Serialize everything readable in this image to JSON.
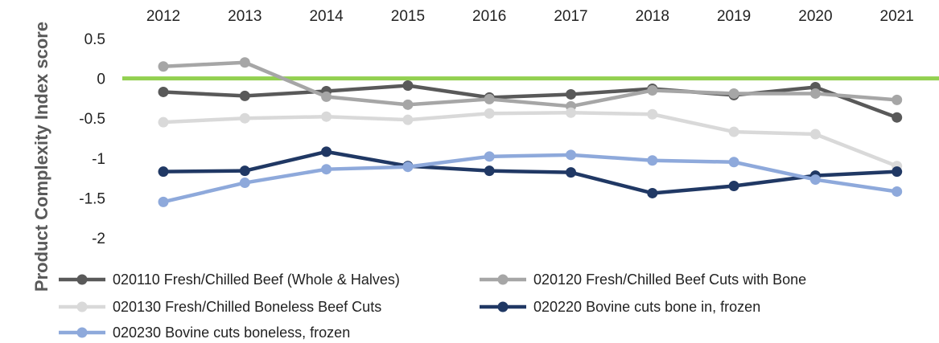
{
  "chart_data": {
    "type": "line",
    "categories": [
      "2012",
      "2013",
      "2014",
      "2015",
      "2016",
      "2017",
      "2018",
      "2019",
      "2020",
      "2021"
    ],
    "ylabel": "Product Complexity Index score",
    "ylim": [
      -2,
      0.5
    ],
    "yticks": [
      "0.5",
      "0",
      "-0.5",
      "-1",
      "-1.5",
      "-2"
    ],
    "x_axis_position": "top",
    "grid": false,
    "zero_line_color": "#92D050",
    "legend_position": "bottom",
    "series": [
      {
        "name": "020110 Fresh/Chilled Beef (Whole & Halves)",
        "color": "#595959",
        "values": [
          -0.17,
          -0.22,
          -0.16,
          -0.09,
          -0.24,
          -0.2,
          -0.13,
          -0.21,
          -0.11,
          -0.49
        ]
      },
      {
        "name": "020120 Fresh/Chilled Beef Cuts with Bone",
        "color": "#A6A6A6",
        "values": [
          0.15,
          0.2,
          -0.23,
          -0.33,
          -0.26,
          -0.35,
          -0.15,
          -0.19,
          -0.19,
          -0.27
        ]
      },
      {
        "name": "020130 Fresh/Chilled Boneless Beef Cuts",
        "color": "#D9D9D9",
        "values": [
          -0.55,
          -0.5,
          -0.48,
          -0.52,
          -0.44,
          -0.43,
          -0.45,
          -0.67,
          -0.7,
          -1.1
        ]
      },
      {
        "name": "020220 Bovine cuts bone in, frozen",
        "color": "#203864",
        "values": [
          -1.17,
          -1.16,
          -0.92,
          -1.1,
          -1.16,
          -1.18,
          -1.44,
          -1.35,
          -1.22,
          -1.17
        ]
      },
      {
        "name": "020230 Bovine cuts boneless, frozen",
        "color": "#8EA9DB",
        "values": [
          -1.55,
          -1.31,
          -1.14,
          -1.11,
          -0.98,
          -0.96,
          -1.03,
          -1.05,
          -1.27,
          -1.42
        ]
      }
    ]
  }
}
